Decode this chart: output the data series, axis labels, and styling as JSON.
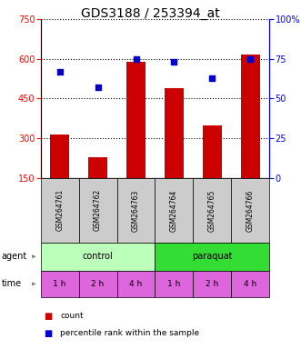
{
  "title": "GDS3188 / 253394_at",
  "categories": [
    "GSM264761",
    "GSM264762",
    "GSM264763",
    "GSM264764",
    "GSM264765",
    "GSM264766"
  ],
  "bar_values": [
    315,
    230,
    590,
    490,
    350,
    615
  ],
  "dot_values": [
    67,
    57,
    75,
    73,
    63,
    75
  ],
  "bar_color": "#cc0000",
  "dot_color": "#0000cc",
  "ylim_left": [
    150,
    750
  ],
  "ylim_right": [
    0,
    100
  ],
  "yticks_left": [
    150,
    300,
    450,
    600,
    750
  ],
  "yticks_right": [
    0,
    25,
    50,
    75,
    100
  ],
  "ytick_labels_right": [
    "0",
    "25",
    "50",
    "75",
    "100%"
  ],
  "agent_colors": [
    "#bbffbb",
    "#33dd33"
  ],
  "time_color": "#dd66dd",
  "time_labels": [
    "1 h",
    "2 h",
    "4 h",
    "1 h",
    "2 h",
    "4 h"
  ],
  "gsm_bg_color": "#cccccc",
  "legend_count_color": "#cc0000",
  "legend_dot_color": "#0000cc",
  "title_fontsize": 10,
  "tick_fontsize": 7,
  "bar_width": 0.5
}
